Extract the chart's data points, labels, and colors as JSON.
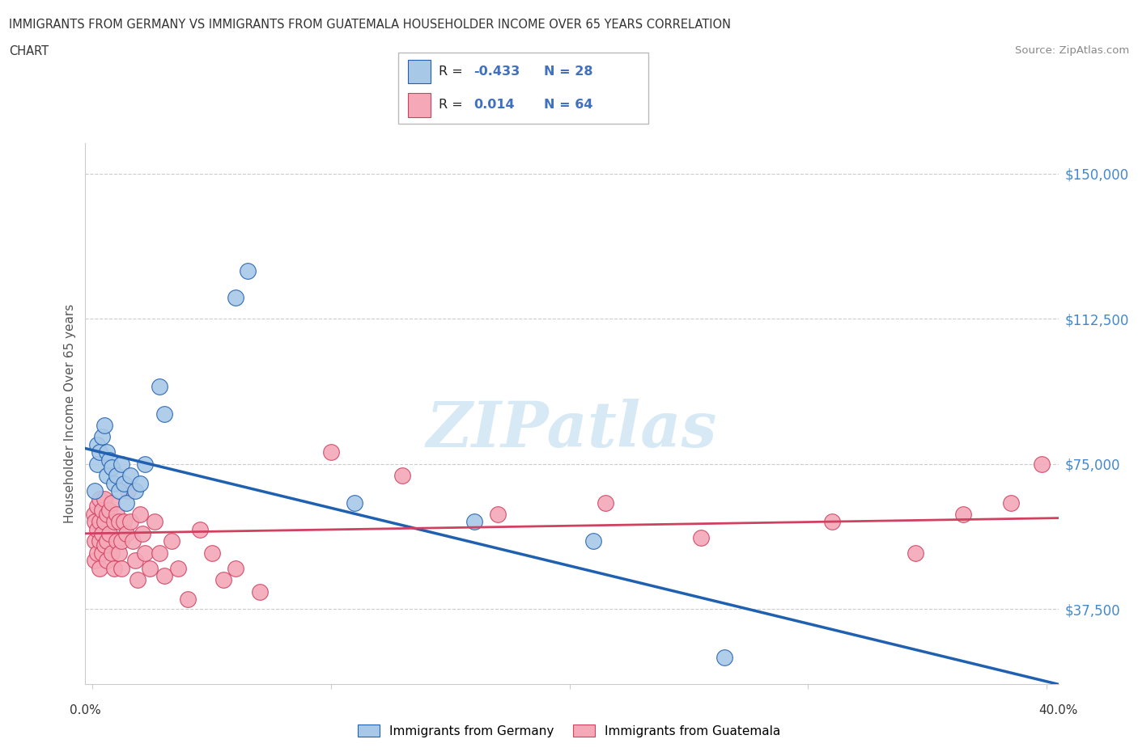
{
  "title_line1": "IMMIGRANTS FROM GERMANY VS IMMIGRANTS FROM GUATEMALA HOUSEHOLDER INCOME OVER 65 YEARS CORRELATION",
  "title_line2": "CHART",
  "source": "Source: ZipAtlas.com",
  "ylabel": "Householder Income Over 65 years",
  "ytick_labels": [
    "$150,000",
    "$112,500",
    "$75,000",
    "$37,500"
  ],
  "ytick_values": [
    150000,
    112500,
    75000,
    37500
  ],
  "y_min": 18000,
  "y_max": 158000,
  "x_min": -0.003,
  "x_max": 0.405,
  "germany_color": "#a8c8e8",
  "guatemala_color": "#f4a8b8",
  "germany_line_color": "#2060b0",
  "guatemala_line_color": "#d04060",
  "watermark_text": "ZIPatlas",
  "germany_x": [
    0.001,
    0.002,
    0.002,
    0.003,
    0.004,
    0.005,
    0.006,
    0.006,
    0.007,
    0.008,
    0.009,
    0.01,
    0.011,
    0.012,
    0.013,
    0.014,
    0.016,
    0.018,
    0.02,
    0.022,
    0.028,
    0.03,
    0.06,
    0.065,
    0.11,
    0.16,
    0.21,
    0.265
  ],
  "germany_y": [
    68000,
    75000,
    80000,
    78000,
    82000,
    85000,
    78000,
    72000,
    76000,
    74000,
    70000,
    72000,
    68000,
    75000,
    70000,
    65000,
    72000,
    68000,
    70000,
    75000,
    95000,
    88000,
    118000,
    125000,
    65000,
    60000,
    55000,
    25000
  ],
  "guatemala_x": [
    0.0005,
    0.001,
    0.001,
    0.001,
    0.002,
    0.002,
    0.002,
    0.003,
    0.003,
    0.003,
    0.003,
    0.004,
    0.004,
    0.004,
    0.005,
    0.005,
    0.005,
    0.006,
    0.006,
    0.006,
    0.007,
    0.007,
    0.008,
    0.008,
    0.009,
    0.009,
    0.01,
    0.01,
    0.011,
    0.011,
    0.012,
    0.012,
    0.013,
    0.014,
    0.015,
    0.016,
    0.017,
    0.018,
    0.019,
    0.02,
    0.021,
    0.022,
    0.024,
    0.026,
    0.028,
    0.03,
    0.033,
    0.036,
    0.04,
    0.045,
    0.05,
    0.055,
    0.06,
    0.07,
    0.1,
    0.13,
    0.17,
    0.215,
    0.255,
    0.31,
    0.345,
    0.365,
    0.385,
    0.398
  ],
  "guatemala_y": [
    62000,
    60000,
    55000,
    50000,
    64000,
    58000,
    52000,
    66000,
    60000,
    55000,
    48000,
    63000,
    57000,
    52000,
    66000,
    60000,
    54000,
    62000,
    55000,
    50000,
    63000,
    57000,
    65000,
    52000,
    60000,
    48000,
    62000,
    55000,
    60000,
    52000,
    55000,
    48000,
    60000,
    57000,
    68000,
    60000,
    55000,
    50000,
    45000,
    62000,
    57000,
    52000,
    48000,
    60000,
    52000,
    46000,
    55000,
    48000,
    40000,
    58000,
    52000,
    45000,
    48000,
    42000,
    78000,
    72000,
    62000,
    65000,
    56000,
    60000,
    52000,
    62000,
    65000,
    75000
  ],
  "germany_line_x": [
    -0.003,
    0.405
  ],
  "germany_line_y": [
    79000,
    18000
  ],
  "guatemala_line_x": [
    -0.003,
    0.405
  ],
  "guatemala_line_y": [
    57000,
    61000
  ]
}
